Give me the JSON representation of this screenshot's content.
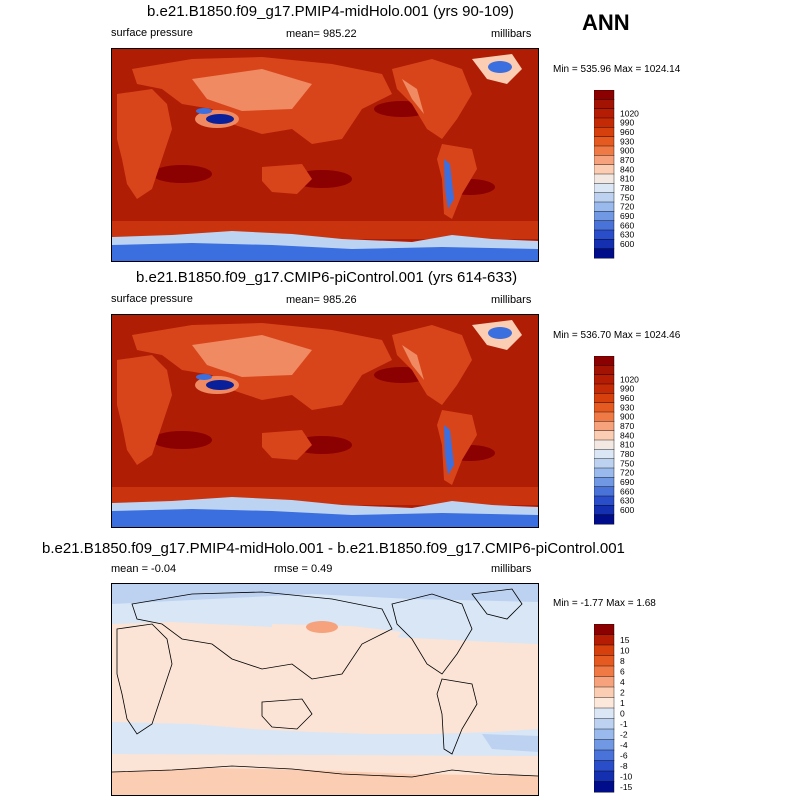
{
  "season": "ANN",
  "panels": [
    {
      "title": "b.e21.B1850.f09_g17.PMIP4-midHolo.001 (yrs 90-109)",
      "left_label": "surface pressure",
      "center_label": "mean= 985.22",
      "right_label": "millibars",
      "minmax": "Min = 535.96 Max = 1024.14",
      "colorbar": {
        "labels": [
          "1020",
          "990",
          "960",
          "930",
          "900",
          "870",
          "840",
          "810",
          "780",
          "750",
          "720",
          "690",
          "660",
          "630",
          "600"
        ],
        "colors": [
          "#8b0000",
          "#a31303",
          "#b51c04",
          "#c52a06",
          "#d6400c",
          "#e55a20",
          "#ef7a45",
          "#f6a27c",
          "#fbcdb3",
          "#f3e8e2",
          "#dce7f6",
          "#bdd2f1",
          "#9ab9ec",
          "#7098e3",
          "#4a73d9",
          "#2a4ec9",
          "#1430b0",
          "#000d8a"
        ]
      }
    },
    {
      "title": "b.e21.B1850.f09_g17.CMIP6-piControl.001 (yrs 614-633)",
      "left_label": "surface pressure",
      "center_label": "mean= 985.26",
      "right_label": "millibars",
      "minmax": "Min = 536.70 Max = 1024.46",
      "colorbar": {
        "labels": [
          "1020",
          "990",
          "960",
          "930",
          "900",
          "870",
          "840",
          "810",
          "780",
          "750",
          "720",
          "690",
          "660",
          "630",
          "600"
        ],
        "colors": [
          "#8b0000",
          "#a31303",
          "#b51c04",
          "#c52a06",
          "#d6400c",
          "#e55a20",
          "#ef7a45",
          "#f6a27c",
          "#fbcdb3",
          "#f3e8e2",
          "#dce7f6",
          "#bdd2f1",
          "#9ab9ec",
          "#7098e3",
          "#4a73d9",
          "#2a4ec9",
          "#1430b0",
          "#000d8a"
        ]
      }
    },
    {
      "title": "b.e21.B1850.f09_g17.PMIP4-midHolo.001 - b.e21.B1850.f09_g17.CMIP6-piControl.001",
      "left_label": "mean =  -0.04",
      "center_label": "rmse =  0.49",
      "right_label": "millibars",
      "minmax": "Min =  -1.77 Max =   1.68",
      "colorbar": {
        "labels": [
          "15",
          "10",
          "8",
          "6",
          "4",
          "2",
          "1",
          "0",
          "-1",
          "-2",
          "-4",
          "-6",
          "-8",
          "-10",
          "-15"
        ],
        "colors": [
          "#8b0000",
          "#b51c04",
          "#d6400c",
          "#e55a20",
          "#ef7a45",
          "#f6a27c",
          "#fbcdb3",
          "#fde8dc",
          "#dce7f6",
          "#bdd2f1",
          "#9ab9ec",
          "#7098e3",
          "#4a73d9",
          "#2a4ec9",
          "#1430b0",
          "#000d8a"
        ]
      }
    }
  ],
  "colors": {
    "ocean_high": "#b01d05",
    "land_mid": "#d9451a",
    "land_low": "#ef8a62",
    "ice_blue": "#3b6fe0",
    "antarctic_light": "#bcd3f2",
    "diff_neutral_pos": "#fbe4d6",
    "diff_neutral_neg": "#d8e6f6"
  }
}
